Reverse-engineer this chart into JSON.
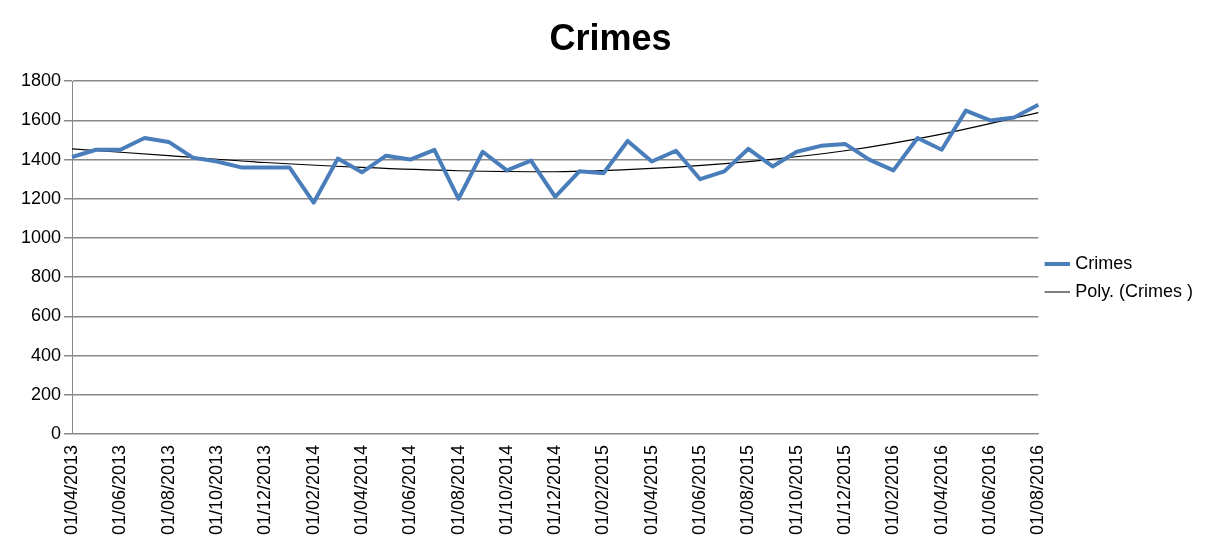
{
  "chart_data": {
    "type": "line",
    "title": "Crimes",
    "categories": [
      "01/04/2013",
      null,
      "01/06/2013",
      null,
      "01/08/2013",
      null,
      "01/10/2013",
      null,
      "01/12/2013",
      null,
      "01/02/2014",
      null,
      "01/04/2014",
      null,
      "01/06/2014",
      null,
      "01/08/2014",
      null,
      "01/10/2014",
      null,
      "01/12/2014",
      null,
      "01/02/2015",
      null,
      "01/04/2015",
      null,
      "01/06/2015",
      null,
      "01/08/2015",
      null,
      "01/10/2015",
      null,
      "01/12/2015",
      null,
      "01/02/2016",
      null,
      "01/04/2016",
      null,
      "01/06/2016",
      null,
      "01/08/2016"
    ],
    "series": [
      {
        "name": "Crimes",
        "color": "#4a7ebb",
        "values": [
          1413,
          1450,
          1450,
          1510,
          1490,
          1410,
          1390,
          1360,
          1360,
          1360,
          1180,
          1405,
          1335,
          1420,
          1400,
          1450,
          1200,
          1440,
          1345,
          1395,
          1210,
          1340,
          1330,
          1495,
          1390,
          1445,
          1300,
          1340,
          1455,
          1365,
          1440,
          1470,
          1480,
          1400,
          1345,
          1510,
          1450,
          1650,
          1600,
          1615,
          1680
        ]
      },
      {
        "name": "Poly. (Crimes )",
        "type": "line",
        "color": "#000000",
        "x": [
          "01/04/2013",
          "01/08/2013",
          "01/12/2013",
          "01/04/2014",
          "01/08/2014",
          "01/12/2014",
          "01/04/2015",
          "01/08/2015",
          "01/12/2015",
          "01/04/2016",
          "01/08/2016"
        ],
        "values": [
          1455,
          1420,
          1385,
          1360,
          1343,
          1338,
          1355,
          1390,
          1445,
          1530,
          1640
        ]
      }
    ],
    "ylim": [
      0,
      1800
    ],
    "yticks": [
      0,
      200,
      400,
      600,
      800,
      1000,
      1200,
      1400,
      1600,
      1800
    ],
    "grid": "y",
    "legend": "right",
    "marker": "none",
    "line_style": "solid"
  }
}
